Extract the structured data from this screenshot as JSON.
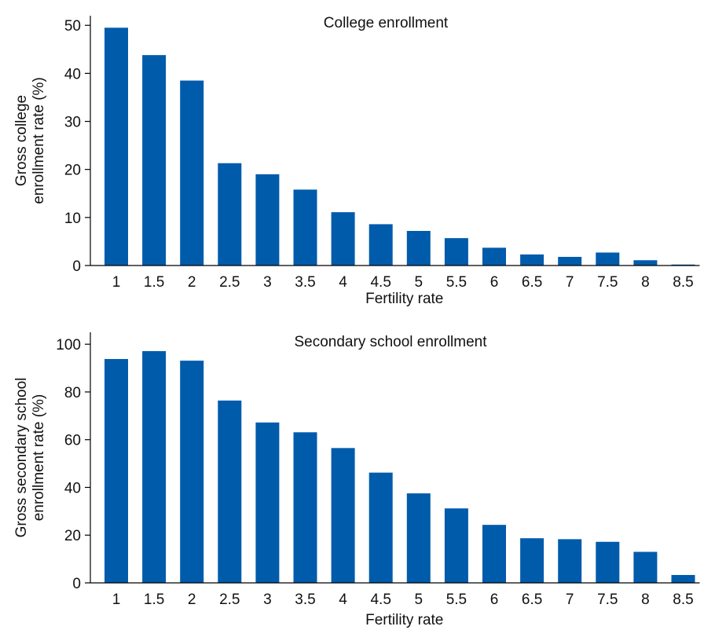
{
  "chart_data": [
    {
      "type": "bar",
      "title": "College enrollment",
      "xlabel": "Fertility rate",
      "ylabel": [
        "Gross college",
        "enrollment rate (%)"
      ],
      "categories": [
        "1",
        "1.5",
        "2",
        "2.5",
        "3",
        "3.5",
        "4",
        "4.5",
        "5",
        "5.5",
        "6",
        "6.5",
        "7",
        "7.5",
        "8",
        "8.5"
      ],
      "values": [
        49.5,
        43.8,
        38.5,
        21.3,
        19.0,
        15.8,
        11.1,
        8.6,
        7.2,
        5.7,
        3.7,
        2.3,
        1.8,
        2.7,
        1.1,
        0.2
      ],
      "ylim": [
        0,
        52
      ],
      "yticks": [
        0,
        10,
        20,
        30,
        40,
        50
      ],
      "grid": false,
      "legend": "none",
      "bar_color": "#005bab"
    },
    {
      "type": "bar",
      "title": "Secondary school enrollment",
      "xlabel": "Fertility rate",
      "ylabel": [
        "Gross secondary school",
        "enrollment rate (%)"
      ],
      "categories": [
        "1",
        "1.5",
        "2",
        "2.5",
        "3",
        "3.5",
        "4",
        "4.5",
        "5",
        "5.5",
        "6",
        "6.5",
        "7",
        "7.5",
        "8",
        "8.5"
      ],
      "values": [
        93.8,
        97.1,
        93.1,
        76.4,
        67.2,
        63.1,
        56.5,
        46.2,
        37.5,
        31.2,
        24.3,
        18.7,
        18.3,
        17.2,
        13.0,
        3.3
      ],
      "ylim": [
        0,
        105
      ],
      "yticks": [
        0,
        20,
        40,
        60,
        80,
        100
      ],
      "grid": false,
      "legend": "none",
      "bar_color": "#005bab"
    }
  ]
}
